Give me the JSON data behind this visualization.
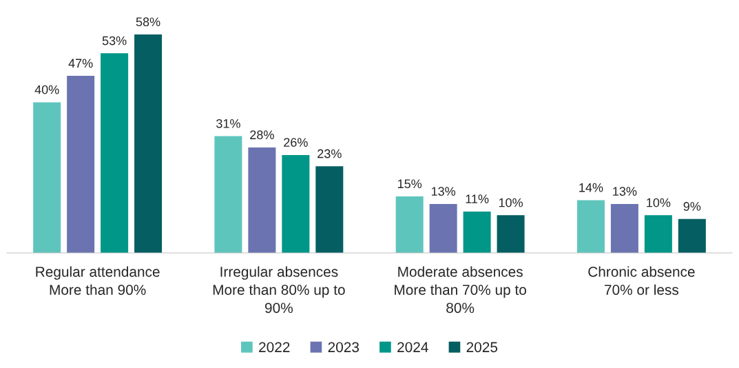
{
  "chart_data": {
    "type": "bar",
    "categories": [
      "Regular attendance\nMore than 90%",
      "Irregular absences\nMore than 80% up to\n90%",
      "Moderate absences\nMore than 70% up to\n80%",
      "Chronic absence\n70% or less"
    ],
    "series": [
      {
        "name": "2022",
        "color": "#5ec5bd",
        "values": [
          40,
          31,
          15,
          14
        ],
        "value_labels": [
          "40%",
          "31%",
          "15%",
          "14%"
        ]
      },
      {
        "name": "2023",
        "color": "#6b74b0",
        "values": [
          47,
          28,
          13,
          13
        ],
        "value_labels": [
          "47%",
          "28%",
          "13%",
          "13%"
        ]
      },
      {
        "name": "2024",
        "color": "#009688",
        "values": [
          53,
          26,
          11,
          10
        ],
        "value_labels": [
          "53%",
          "26%",
          "11%",
          "10%"
        ]
      },
      {
        "name": "2025",
        "color": "#045e62",
        "values": [
          58,
          23,
          10,
          9
        ],
        "value_labels": [
          "58%",
          "23%",
          "10%",
          "9%"
        ]
      }
    ],
    "legend": "bottom",
    "grid": false
  }
}
